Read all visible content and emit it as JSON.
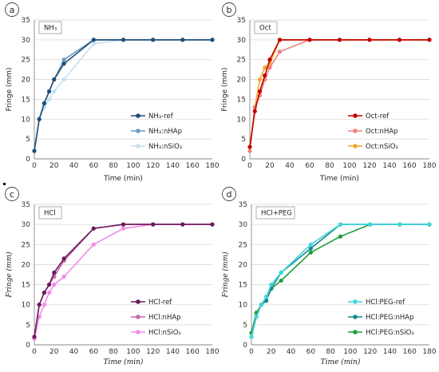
{
  "chart_data": [
    {
      "panel_label": "a",
      "box_label": "NH₃",
      "type": "line",
      "xlabel": "Time (min)",
      "ylabel": "Fringe (mm)",
      "xlim": [
        0,
        180
      ],
      "ylim": [
        0,
        35
      ],
      "xticks": [
        0,
        20,
        40,
        60,
        80,
        100,
        120,
        140,
        160,
        180
      ],
      "yticks": [
        0,
        5,
        10,
        15,
        20,
        25,
        30,
        35
      ],
      "grid": "horizontal",
      "legend": "bottom-right",
      "series": [
        {
          "name": "NH₃-ref",
          "color": "#1f4e79",
          "points": [
            [
              0,
              2
            ],
            [
              5,
              10
            ],
            [
              10,
              14
            ],
            [
              15,
              17
            ],
            [
              20,
              20
            ],
            [
              30,
              24
            ],
            [
              60,
              30
            ],
            [
              90,
              30
            ],
            [
              120,
              30
            ],
            [
              150,
              30
            ],
            [
              180,
              30
            ]
          ]
        },
        {
          "name": "NH₃:nHAp",
          "color": "#6a9ac7",
          "points": [
            [
              0,
              2
            ],
            [
              5,
              10
            ],
            [
              10,
              14
            ],
            [
              15,
              17
            ],
            [
              20,
              20
            ],
            [
              30,
              25
            ],
            [
              60,
              30
            ],
            [
              90,
              30
            ],
            [
              120,
              30
            ],
            [
              150,
              30
            ],
            [
              180,
              30
            ]
          ]
        },
        {
          "name": "NH₃:nSiO₂",
          "color": "#c5e0f2",
          "points": [
            [
              0,
              2
            ],
            [
              5,
              10
            ],
            [
              10,
              13
            ],
            [
              15,
              15
            ],
            [
              20,
              17
            ],
            [
              30,
              20
            ],
            [
              60,
              29
            ],
            [
              90,
              30
            ],
            [
              120,
              30
            ],
            [
              150,
              30
            ],
            [
              180,
              30
            ]
          ]
        }
      ]
    },
    {
      "panel_label": "b",
      "box_label": "Oct",
      "type": "line",
      "xlabel": "Time (min)",
      "ylabel": "Fringe (mm)",
      "xlim": [
        0,
        180
      ],
      "ylim": [
        0,
        35
      ],
      "xticks": [
        0,
        20,
        40,
        60,
        80,
        100,
        120,
        140,
        160,
        180
      ],
      "yticks": [
        0,
        5,
        10,
        15,
        20,
        25,
        30,
        35
      ],
      "grid": "horizontal",
      "legend": "bottom-right",
      "series": [
        {
          "name": "Oct-ref",
          "color": "#c00000",
          "points": [
            [
              0,
              3
            ],
            [
              5,
              12
            ],
            [
              10,
              17
            ],
            [
              15,
              21
            ],
            [
              20,
              25
            ],
            [
              30,
              30
            ],
            [
              60,
              30
            ],
            [
              90,
              30
            ],
            [
              120,
              30
            ],
            [
              150,
              30
            ],
            [
              180,
              30
            ]
          ]
        },
        {
          "name": "Oct:nHAp",
          "color": "#f08080",
          "points": [
            [
              0,
              2
            ],
            [
              5,
              13
            ],
            [
              10,
              16
            ],
            [
              15,
              20
            ],
            [
              20,
              23
            ],
            [
              30,
              27
            ],
            [
              60,
              30
            ],
            [
              90,
              30
            ],
            [
              120,
              30
            ],
            [
              150,
              30
            ],
            [
              180,
              30
            ]
          ]
        },
        {
          "name": "Oct:nSiO₂",
          "color": "#f5a623",
          "points": [
            [
              0,
              3
            ],
            [
              5,
              13
            ],
            [
              10,
              20
            ],
            [
              15,
              23
            ],
            [
              20,
              24
            ],
            [
              30,
              30
            ],
            [
              60,
              30
            ],
            [
              90,
              30
            ],
            [
              120,
              30
            ],
            [
              150,
              30
            ],
            [
              180,
              30
            ]
          ]
        }
      ]
    },
    {
      "panel_label": "c",
      "box_label": "HCl",
      "type": "line",
      "xlabel": "Time (min)",
      "ylabel": "Fringe (mm)",
      "xlim": [
        0,
        180
      ],
      "ylim": [
        0,
        35
      ],
      "xticks": [
        0,
        20,
        40,
        60,
        80,
        100,
        120,
        140,
        160,
        180
      ],
      "yticks": [
        0,
        5,
        10,
        15,
        20,
        25,
        30,
        35
      ],
      "grid": "horizontal",
      "legend": "bottom-right",
      "series": [
        {
          "name": "HCl-ref",
          "color": "#6b1b5e",
          "points": [
            [
              0,
              2
            ],
            [
              5,
              10
            ],
            [
              10,
              13
            ],
            [
              15,
              15
            ],
            [
              20,
              18
            ],
            [
              30,
              21.5
            ],
            [
              60,
              29
            ],
            [
              90,
              30
            ],
            [
              120,
              30
            ],
            [
              150,
              30
            ],
            [
              180,
              30
            ]
          ]
        },
        {
          "name": "HCl:nHAp",
          "color": "#c766a8",
          "points": [
            [
              0,
              2
            ],
            [
              5,
              10
            ],
            [
              10,
              13
            ],
            [
              15,
              15
            ],
            [
              20,
              17
            ],
            [
              30,
              21
            ],
            [
              60,
              29
            ],
            [
              90,
              30
            ],
            [
              120,
              30
            ],
            [
              150,
              30
            ],
            [
              180,
              30
            ]
          ]
        },
        {
          "name": "HCl:nSiO₂",
          "color": "#f48ae8",
          "points": [
            [
              0,
              1.5
            ],
            [
              5,
              7
            ],
            [
              10,
              10
            ],
            [
              15,
              13
            ],
            [
              20,
              15
            ],
            [
              30,
              17
            ],
            [
              60,
              25
            ],
            [
              90,
              29
            ],
            [
              120,
              30
            ],
            [
              150,
              30
            ],
            [
              180,
              30
            ]
          ]
        }
      ]
    },
    {
      "panel_label": "d",
      "box_label": "HCl+PEG",
      "type": "line",
      "xlabel": "Time (min)",
      "ylabel": "Fringe (mm)",
      "xlim": [
        0,
        180
      ],
      "ylim": [
        0,
        35
      ],
      "xticks": [
        0,
        20,
        40,
        60,
        80,
        100,
        120,
        140,
        160,
        180
      ],
      "yticks": [
        0,
        5,
        10,
        15,
        20,
        25,
        30,
        35
      ],
      "grid": "horizontal",
      "legend": "bottom-right",
      "series": [
        {
          "name": "HCl:PEG-ref",
          "color": "#3fd6dd",
          "points": [
            [
              0,
              2
            ],
            [
              5,
              7
            ],
            [
              10,
              10
            ],
            [
              15,
              12
            ],
            [
              20,
              15
            ],
            [
              30,
              18
            ],
            [
              60,
              25
            ],
            [
              90,
              30
            ],
            [
              120,
              30
            ],
            [
              150,
              30
            ],
            [
              180,
              30
            ]
          ]
        },
        {
          "name": "HCl:PEG:nHAp",
          "color": "#158a8a",
          "points": [
            [
              0,
              2
            ],
            [
              5,
              7
            ],
            [
              10,
              10
            ],
            [
              15,
              11
            ],
            [
              20,
              14
            ],
            [
              30,
              18
            ],
            [
              60,
              24
            ],
            [
              90,
              30
            ],
            [
              120,
              30
            ],
            [
              150,
              30
            ],
            [
              180,
              30
            ]
          ]
        },
        {
          "name": "HCl:PEG:nSiO₂",
          "color": "#1e9e3c",
          "points": [
            [
              0,
              3
            ],
            [
              5,
              8
            ],
            [
              10,
              10
            ],
            [
              15,
              11
            ],
            [
              20,
              14
            ],
            [
              30,
              16
            ],
            [
              60,
              23
            ],
            [
              90,
              27
            ],
            [
              120,
              30
            ],
            [
              150,
              30
            ],
            [
              180,
              30
            ]
          ]
        }
      ]
    }
  ]
}
